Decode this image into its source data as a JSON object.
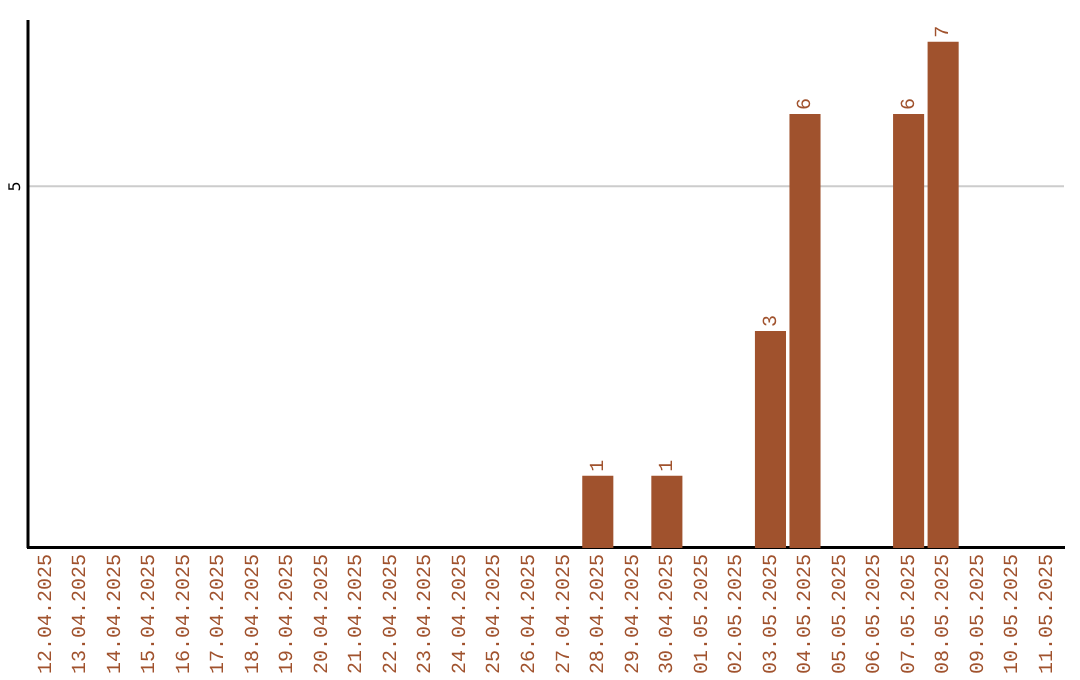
{
  "chart_data": {
    "type": "bar",
    "ylim": [
      0,
      7.3
    ],
    "categories": [
      "12.04.2025",
      "13.04.2025",
      "14.04.2025",
      "15.04.2025",
      "16.04.2025",
      "17.04.2025",
      "18.04.2025",
      "19.04.2025",
      "20.04.2025",
      "21.04.2025",
      "22.04.2025",
      "23.04.2025",
      "24.04.2025",
      "25.04.2025",
      "26.04.2025",
      "27.04.2025",
      "28.04.2025",
      "29.04.2025",
      "30.04.2025",
      "01.05.2025",
      "02.05.2025",
      "03.05.2025",
      "04.05.2025",
      "05.05.2025",
      "06.05.2025",
      "07.05.2025",
      "08.05.2025",
      "09.05.2025",
      "10.05.2025",
      "11.05.2025"
    ],
    "values": [
      null,
      null,
      null,
      null,
      null,
      null,
      null,
      null,
      null,
      null,
      null,
      null,
      null,
      null,
      null,
      null,
      1,
      null,
      1,
      null,
      null,
      3,
      6,
      null,
      null,
      6,
      7,
      null,
      null,
      null
    ],
    "data_labels": true,
    "ref_lines": [
      {
        "axis": "y",
        "value": 5,
        "label": "5",
        "color": "#cccccc"
      }
    ],
    "color": "#a0522d",
    "legend": false
  }
}
